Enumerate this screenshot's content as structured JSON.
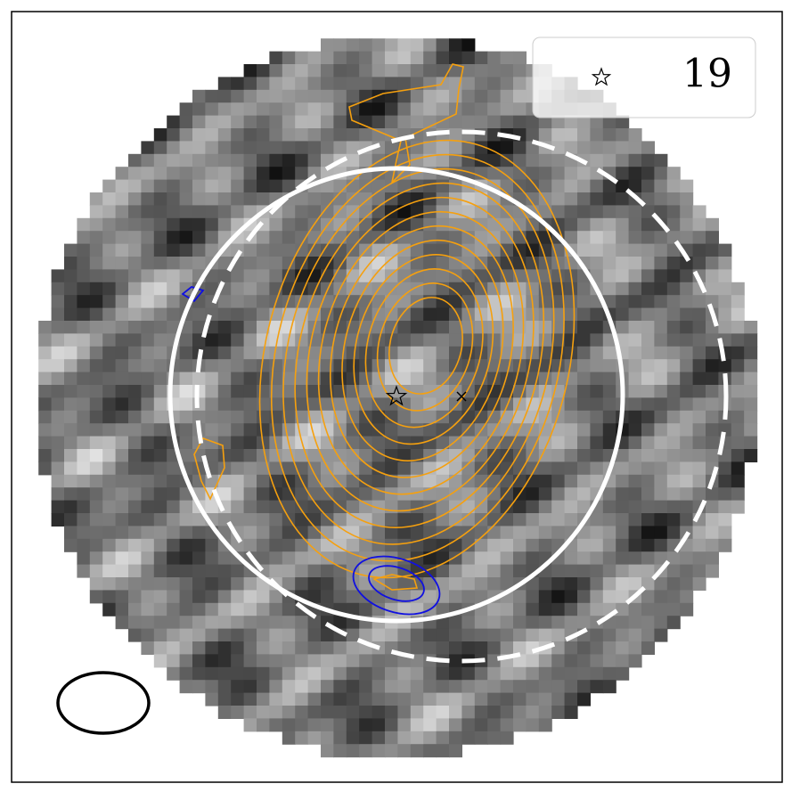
{
  "legend": {
    "label": "19"
  }
}
